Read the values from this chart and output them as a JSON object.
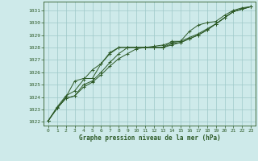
{
  "title": "Graphe pression niveau de la mer (hPa)",
  "bg_color": "#ceeaea",
  "grid_color": "#9ec8c8",
  "line_color": "#2d5a27",
  "xlim": [
    -0.5,
    23.5
  ],
  "ylim": [
    1021.7,
    1031.7
  ],
  "yticks": [
    1022,
    1023,
    1024,
    1025,
    1026,
    1027,
    1028,
    1029,
    1030,
    1031
  ],
  "xticks": [
    0,
    1,
    2,
    3,
    4,
    5,
    6,
    7,
    8,
    9,
    10,
    11,
    12,
    13,
    14,
    15,
    16,
    17,
    18,
    19,
    20,
    21,
    22,
    23
  ],
  "series": [
    [
      1022.1,
      1023.1,
      1023.9,
      1024.1,
      1024.8,
      1025.2,
      1025.8,
      1026.5,
      1027.1,
      1027.5,
      1027.9,
      1028.0,
      1028.1,
      1028.2,
      1028.4,
      1028.5,
      1028.8,
      1029.1,
      1029.5,
      1029.9,
      1030.4,
      1030.9,
      1031.1,
      1031.3
    ],
    [
      1022.1,
      1023.1,
      1023.9,
      1024.1,
      1025.0,
      1025.3,
      1026.0,
      1026.8,
      1027.5,
      1028.0,
      1028.0,
      1028.0,
      1028.0,
      1028.0,
      1028.2,
      1028.4,
      1028.7,
      1029.0,
      1029.4,
      1029.9,
      1030.4,
      1030.9,
      1031.1,
      1031.3
    ],
    [
      1022.1,
      1023.1,
      1024.0,
      1025.3,
      1025.5,
      1025.5,
      1026.7,
      1027.5,
      1028.0,
      1028.0,
      1028.0,
      1028.0,
      1028.0,
      1028.0,
      1028.3,
      1028.4,
      1028.7,
      1029.0,
      1029.4,
      1029.9,
      1030.4,
      1030.9,
      1031.1,
      1031.3
    ],
    [
      1022.1,
      1023.2,
      1024.1,
      1024.5,
      1025.4,
      1026.2,
      1026.7,
      1027.6,
      1028.0,
      1028.0,
      1028.0,
      1028.0,
      1028.0,
      1028.0,
      1028.5,
      1028.5,
      1029.3,
      1029.8,
      1030.0,
      1030.1,
      1030.6,
      1031.0,
      1031.2,
      1031.3
    ]
  ]
}
